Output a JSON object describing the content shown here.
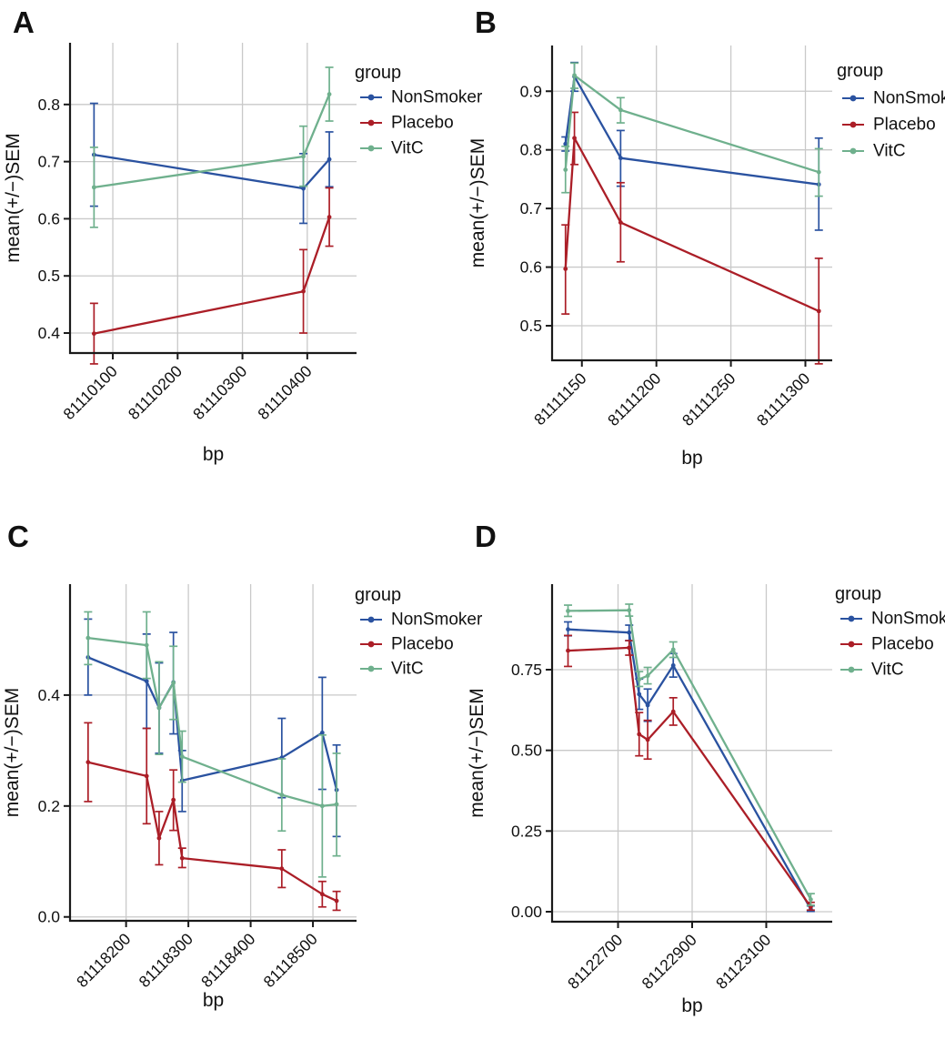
{
  "figure": {
    "background": "#ffffff",
    "grid_color": "#c9c9c9",
    "axis_color": "#1a1a1a",
    "group_colors": {
      "NonSmoker": "#2a52a0",
      "Placebo": "#ab1e27",
      "VitC": "#6fb08d"
    }
  },
  "chart_data": [
    {
      "panel_label": "A",
      "type": "line",
      "xlabel": "bp",
      "ylabel": "mean(+/−)SEM",
      "legend_title": "group",
      "legend_position": "right",
      "grid": true,
      "xlim": [
        81110034,
        81110476
      ],
      "ylim": [
        0.365,
        0.908
      ],
      "x_ticks": [
        81110100,
        81110200,
        81110300,
        81110400
      ],
      "x_tick_labels": [
        "81110100",
        "81110200",
        "81110300",
        "81110400"
      ],
      "y_ticks": [
        0.4,
        0.5,
        0.6,
        0.7,
        0.8
      ],
      "y_tick_labels": [
        "0.4",
        "0.5",
        "0.6",
        "0.7",
        "0.8"
      ],
      "series": [
        {
          "name": "NonSmoker",
          "color": "#2a52a0",
          "x": [
            81110071,
            81110394,
            81110434
          ],
          "y": [
            0.712,
            0.653,
            0.704
          ],
          "y_lo": [
            0.622,
            0.592,
            0.656
          ],
          "y_hi": [
            0.802,
            0.714,
            0.752
          ]
        },
        {
          "name": "Placebo",
          "color": "#ab1e27",
          "x": [
            81110071,
            81110394,
            81110434
          ],
          "y": [
            0.399,
            0.473,
            0.603
          ],
          "y_lo": [
            0.346,
            0.4,
            0.552
          ],
          "y_hi": [
            0.452,
            0.546,
            0.654
          ]
        },
        {
          "name": "VitC",
          "color": "#6fb08d",
          "x": [
            81110071,
            81110394,
            81110434
          ],
          "y": [
            0.655,
            0.709,
            0.818
          ],
          "y_lo": [
            0.585,
            0.657,
            0.771
          ],
          "y_hi": [
            0.725,
            0.762,
            0.865
          ]
        }
      ]
    },
    {
      "panel_label": "B",
      "type": "line",
      "xlabel": "bp",
      "ylabel": "mean(+/−)SEM",
      "legend_title": "group",
      "legend_position": "right",
      "grid": true,
      "xlim": [
        81111130,
        81111318
      ],
      "ylim": [
        0.441,
        0.978
      ],
      "x_ticks": [
        81111150,
        81111200,
        81111250,
        81111300
      ],
      "x_tick_labels": [
        "81111150",
        "81111200",
        "81111250",
        "81111300"
      ],
      "y_ticks": [
        0.5,
        0.6,
        0.7,
        0.8,
        0.9
      ],
      "y_tick_labels": [
        "0.5",
        "0.6",
        "0.7",
        "0.8",
        "0.9"
      ],
      "series": [
        {
          "name": "NonSmoker",
          "color": "#2a52a0",
          "x": [
            81111139,
            81111145,
            81111176,
            81111309
          ],
          "y": [
            0.81,
            0.925,
            0.786,
            0.741
          ],
          "y_lo": [
            0.798,
            0.9,
            0.738,
            0.663
          ],
          "y_hi": [
            0.822,
            0.949,
            0.833,
            0.82
          ]
        },
        {
          "name": "Placebo",
          "color": "#ab1e27",
          "x": [
            81111139,
            81111145,
            81111176,
            81111309
          ],
          "y": [
            0.597,
            0.82,
            0.676,
            0.525
          ],
          "y_lo": [
            0.52,
            0.775,
            0.609,
            0.435
          ],
          "y_hi": [
            0.672,
            0.864,
            0.744,
            0.615
          ]
        },
        {
          "name": "VitC",
          "color": "#6fb08d",
          "x": [
            81111139,
            81111145,
            81111176,
            81111309
          ],
          "y": [
            0.766,
            0.927,
            0.868,
            0.762
          ],
          "y_lo": [
            0.727,
            0.905,
            0.846,
            0.721
          ],
          "y_hi": [
            0.806,
            0.948,
            0.889,
            0.802
          ]
        }
      ]
    },
    {
      "panel_label": "C",
      "type": "line",
      "xlabel": "bp",
      "ylabel": "mean(+/−)SEM",
      "legend_title": "group",
      "legend_position": "right",
      "grid": true,
      "xlim": [
        81118110,
        81118570
      ],
      "ylim": [
        -0.007,
        0.6
      ],
      "x_ticks": [
        81118200,
        81118300,
        81118400,
        81118500
      ],
      "x_tick_labels": [
        "81118200",
        "81118300",
        "81118400",
        "81118500"
      ],
      "y_ticks": [
        0.0,
        0.2,
        0.4
      ],
      "y_tick_labels": [
        "0.0",
        "0.2",
        "0.4"
      ],
      "series": [
        {
          "name": "NonSmoker",
          "color": "#2a52a0",
          "x": [
            81118139,
            81118233,
            81118253,
            81118276,
            81118290,
            81118450,
            81118515,
            81118538
          ],
          "y": [
            0.468,
            0.425,
            0.377,
            0.423,
            0.246,
            0.287,
            0.332,
            0.229
          ],
          "y_lo": [
            0.4,
            0.34,
            0.295,
            0.33,
            0.19,
            0.215,
            0.23,
            0.145
          ],
          "y_hi": [
            0.537,
            0.51,
            0.458,
            0.513,
            0.3,
            0.358,
            0.432,
            0.31
          ]
        },
        {
          "name": "Placebo",
          "color": "#ab1e27",
          "x": [
            81118139,
            81118233,
            81118253,
            81118276,
            81118290,
            81118450,
            81118515,
            81118538
          ],
          "y": [
            0.279,
            0.254,
            0.142,
            0.211,
            0.106,
            0.087,
            0.041,
            0.029
          ],
          "y_lo": [
            0.208,
            0.168,
            0.094,
            0.156,
            0.089,
            0.053,
            0.018,
            0.012
          ],
          "y_hi": [
            0.35,
            0.34,
            0.19,
            0.265,
            0.124,
            0.121,
            0.064,
            0.046
          ]
        },
        {
          "name": "VitC",
          "color": "#6fb08d",
          "x": [
            81118139,
            81118233,
            81118253,
            81118276,
            81118290,
            81118450,
            81118515,
            81118538
          ],
          "y": [
            0.503,
            0.49,
            0.377,
            0.422,
            0.289,
            0.22,
            0.2,
            0.203
          ],
          "y_lo": [
            0.455,
            0.43,
            0.293,
            0.356,
            0.243,
            0.155,
            0.072,
            0.11
          ],
          "y_hi": [
            0.55,
            0.55,
            0.46,
            0.488,
            0.335,
            0.285,
            0.328,
            0.295
          ]
        }
      ]
    },
    {
      "panel_label": "D",
      "type": "line",
      "xlabel": "bp",
      "ylabel": "mean(+/−)SEM",
      "legend_title": "group",
      "legend_position": "right",
      "grid": true,
      "xlim": [
        81122522,
        81123278
      ],
      "ylim": [
        -0.031,
        1.015
      ],
      "x_ticks": [
        81122700,
        81122900,
        81123100
      ],
      "x_tick_labels": [
        "81122700",
        "81122900",
        "81123100"
      ],
      "y_ticks": [
        0.0,
        0.25,
        0.5,
        0.75
      ],
      "y_tick_labels": [
        "0.00",
        "0.25",
        "0.50",
        "0.75"
      ],
      "series": [
        {
          "name": "NonSmoker",
          "color": "#2a52a0",
          "x": [
            81122565,
            81122730,
            81122757,
            81122780,
            81122849,
            81123220
          ],
          "y": [
            0.875,
            0.865,
            0.674,
            0.64,
            0.763,
            0.008
          ],
          "y_lo": [
            0.855,
            0.84,
            0.627,
            0.59,
            0.727,
            0.001
          ],
          "y_hi": [
            0.898,
            0.888,
            0.721,
            0.69,
            0.8,
            0.018
          ]
        },
        {
          "name": "Placebo",
          "color": "#ab1e27",
          "x": [
            81122565,
            81122730,
            81122757,
            81122780,
            81122849,
            81123220
          ],
          "y": [
            0.809,
            0.818,
            0.55,
            0.533,
            0.62,
            0.015
          ],
          "y_lo": [
            0.76,
            0.795,
            0.483,
            0.473,
            0.578,
            0.005
          ],
          "y_hi": [
            0.856,
            0.84,
            0.617,
            0.593,
            0.663,
            0.029
          ]
        },
        {
          "name": "VitC",
          "color": "#6fb08d",
          "x": [
            81122565,
            81122730,
            81122757,
            81122780,
            81122849,
            81123220
          ],
          "y": [
            0.932,
            0.934,
            0.72,
            0.731,
            0.812,
            0.038
          ],
          "y_lo": [
            0.915,
            0.916,
            0.698,
            0.706,
            0.788,
            0.02
          ],
          "y_hi": [
            0.95,
            0.953,
            0.744,
            0.757,
            0.836,
            0.056
          ]
        }
      ]
    }
  ]
}
